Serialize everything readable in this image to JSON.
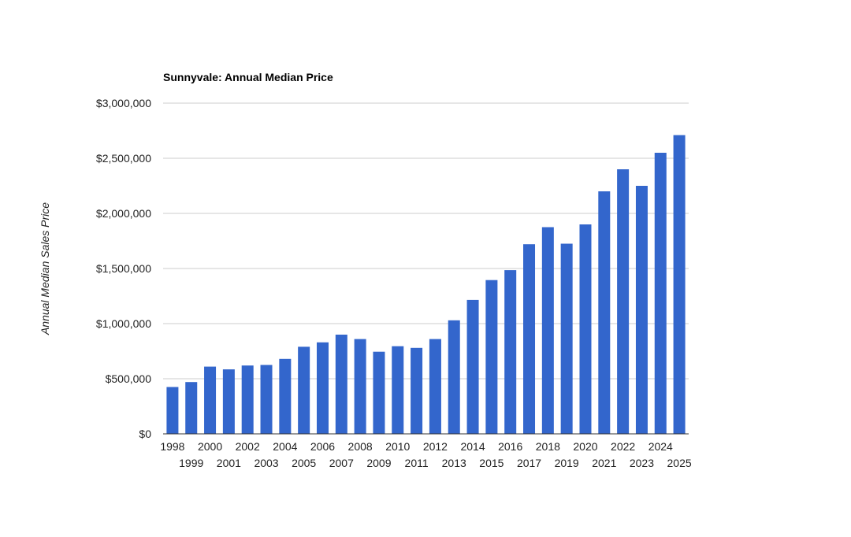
{
  "chart_data": {
    "type": "bar",
    "title": "Sunnyvale:  Annual Median Price",
    "xlabel": "",
    "ylabel": "Annual Median Sales Price",
    "ylim": [
      0,
      3000000
    ],
    "yticks": [
      0,
      500000,
      1000000,
      1500000,
      2000000,
      2500000,
      3000000
    ],
    "ytick_labels": [
      "$0",
      "$500,000",
      "$1,000,000",
      "$1,500,000",
      "$2,000,000",
      "$2,500,000",
      "$3,000,000"
    ],
    "categories": [
      "1998",
      "1999",
      "2000",
      "2001",
      "2002",
      "2003",
      "2004",
      "2005",
      "2006",
      "2007",
      "2008",
      "2009",
      "2010",
      "2011",
      "2012",
      "2013",
      "2014",
      "2015",
      "2016",
      "2017",
      "2018",
      "2019",
      "2020",
      "2021",
      "2022",
      "2023",
      "2024",
      "2025"
    ],
    "values": [
      425000,
      470000,
      610000,
      585000,
      620000,
      625000,
      680000,
      790000,
      830000,
      900000,
      860000,
      745000,
      795000,
      780000,
      860000,
      1030000,
      1215000,
      1395000,
      1485000,
      1720000,
      1875000,
      1725000,
      1900000,
      2200000,
      2400000,
      2250000,
      2550000,
      2710000
    ],
    "bar_color": "#3366cc",
    "grid": true,
    "legend": "none"
  }
}
